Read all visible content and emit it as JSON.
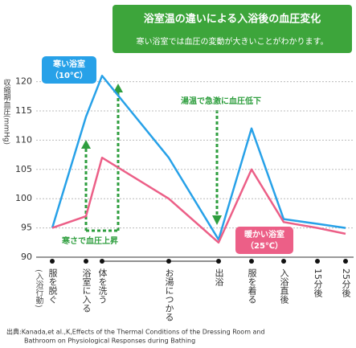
{
  "chart_data": {
    "type": "line",
    "title": "浴室温の違いによる入浴後の血圧変化",
    "subtitle": "寒い浴室では血圧の変動が大きいことがわかります。",
    "y_label": "収縮期血圧(mmHg)",
    "x_label": "(入浴行動)",
    "categories": [
      "服を脱ぐ",
      "浴室に入る",
      "体を洗う",
      "お湯につかる",
      "出浴",
      "服を着る",
      "入浴直後",
      "15分後",
      "25分後"
    ],
    "series": [
      {
        "name": "寒い浴室（10℃）",
        "color": "#27a1e8",
        "values": [
          95,
          114,
          121,
          107,
          93,
          112,
          96.5,
          95.7,
          95
        ]
      },
      {
        "name": "暖かい浴室（25℃）",
        "color": "#ec5f87",
        "values": [
          95,
          97,
          107,
          100,
          92.5,
          105,
          96,
          95,
          94
        ]
      }
    ],
    "ylim": [
      90,
      122
    ],
    "yticks": [
      90,
      95,
      100,
      105,
      110,
      115,
      120
    ],
    "grid": true,
    "annotations": [
      "湯温で急激に血圧低下",
      "寒さで血圧上昇"
    ],
    "source": [
      "出典:Kanada,et al.,K,Effects of the Thermal Conditions of the Dressing Room and",
      "Bathroom on Physiological Responses during Bathing"
    ]
  }
}
